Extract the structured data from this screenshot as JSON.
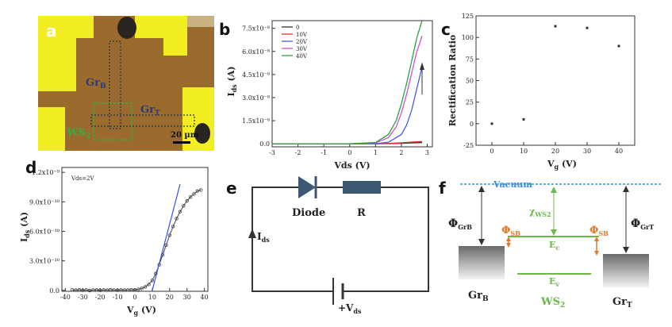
{
  "panels": {
    "a": {
      "letter": "a",
      "label_top": "Gr",
      "label_top_sub": "B",
      "label_mid": "Gr",
      "label_mid_sub": "T",
      "label_ws2": "WS",
      "label_ws2_sub": "2",
      "scalebar": "20 µm",
      "colors": {
        "background": "#9a6b2c",
        "electrode": "#f2ee22",
        "ws2_outline": "#2fae4a",
        "flake_outline": "#223355"
      }
    },
    "b": {
      "letter": "b",
      "arrow_direction": "up"
    },
    "c": {
      "letter": "c"
    },
    "d": {
      "letter": "d"
    },
    "e": {
      "letter": "e",
      "diode_label": "Diode",
      "resistor_label": "R",
      "current_label": "I",
      "current_sub": "ds",
      "source_label": "+V",
      "source_sub": "ds"
    },
    "f": {
      "letter": "f",
      "vacuum": "Vacuum",
      "phi_left": "Φ",
      "phi_left_sub": "GrB",
      "phi_right": "Φ",
      "phi_right_sub": "GrT",
      "phi_sb": "Φ",
      "phi_sb_sub": "SB",
      "chi": "χ",
      "chi_sub": "WS2",
      "ec": "E",
      "ec_sub": "c",
      "ev": "E",
      "ev_sub": "v",
      "gr_left": "Gr",
      "gr_left_sub": "B",
      "gr_right": "Gr",
      "gr_right_sub": "T",
      "ws2": "WS",
      "ws2_sub": "2",
      "colors": {
        "vacuum": "#3a8fd8",
        "band": "#6cb84a",
        "phi_sb": "#e07a2a",
        "phi": "#333333"
      }
    }
  },
  "chart_data": [
    {
      "id": "b",
      "type": "line",
      "ylabel": "I",
      "ylabel_sub": "ds",
      "ylabel_unit": "(A)",
      "xlabel": "Vds (V)",
      "xlim": [
        -3,
        3.2
      ],
      "ylim": [
        -2e-09,
        8e-08
      ],
      "x_ticks": [
        -3,
        -2,
        -1,
        0,
        1,
        2,
        3
      ],
      "x_tick_labels": [
        "-3",
        "-2",
        "-1",
        "0",
        "1",
        "2",
        "3"
      ],
      "y_ticks": [
        0,
        1.5e-08,
        3e-08,
        4.5e-08,
        6e-08,
        7.5e-08
      ],
      "y_tick_labels": [
        "0.0",
        "1.5x10⁻⁸",
        "3.0x10⁻⁸",
        "4.5x10⁻⁸",
        "6.0x10⁻⁸",
        "7.5x10⁻⁸"
      ],
      "legend_position": "top-left",
      "series": [
        {
          "name": "0",
          "color": "#333333",
          "x": [
            -3,
            -2,
            -1,
            0,
            1,
            1.5,
            2,
            2.5,
            2.8
          ],
          "y": [
            0,
            0,
            0,
            0,
            0,
            1e-10,
            3e-10,
            6e-10,
            8e-10
          ]
        },
        {
          "name": "10V",
          "color": "#e03030",
          "x": [
            -3,
            -2,
            -1,
            0,
            1,
            1.5,
            2,
            2.5,
            2.8
          ],
          "y": [
            0,
            0,
            0,
            0,
            0,
            2e-10,
            6e-10,
            1.2e-09,
            1.5e-09
          ]
        },
        {
          "name": "20V",
          "color": "#4d5be0",
          "x": [
            -3,
            -2,
            -1,
            0,
            1,
            1.5,
            2,
            2.2,
            2.4,
            2.6,
            2.8
          ],
          "y": [
            0,
            0,
            0,
            0,
            0,
            1e-09,
            6e-09,
            1.2e-08,
            2.2e-08,
            3.6e-08,
            5e-08
          ]
        },
        {
          "name": "30V",
          "color": "#d050d0",
          "x": [
            -3,
            -2,
            -1,
            0,
            1,
            1.5,
            1.8,
            2.0,
            2.2,
            2.4,
            2.6,
            2.8
          ],
          "y": [
            0,
            0,
            0,
            0,
            5e-10,
            4e-09,
            1.1e-08,
            2e-08,
            3.2e-08,
            4.6e-08,
            6e-08,
            7e-08
          ]
        },
        {
          "name": "40V",
          "color": "#30a040",
          "x": [
            -3,
            -2,
            -1,
            0,
            1,
            1.5,
            1.8,
            2.0,
            2.2,
            2.4,
            2.6,
            2.8
          ],
          "y": [
            0,
            0,
            0,
            0,
            8e-10,
            6e-09,
            1.5e-08,
            2.6e-08,
            3.9e-08,
            5.4e-08,
            6.9e-08,
            8e-08
          ]
        }
      ]
    },
    {
      "id": "c",
      "type": "scatter",
      "ylabel": "Rectification Ratio",
      "xlabel": "V",
      "xlabel_sub": "g",
      "xlabel_unit": "(V)",
      "xlim": [
        -5,
        45
      ],
      "ylim": [
        -25,
        125
      ],
      "x_ticks": [
        0,
        10,
        20,
        30,
        40
      ],
      "y_ticks": [
        -25,
        0,
        25,
        50,
        75,
        100,
        125
      ],
      "series": [
        {
          "x": [
            0,
            10,
            20,
            30,
            40
          ],
          "y": [
            0,
            5,
            113,
            111,
            90
          ]
        }
      ]
    },
    {
      "id": "d",
      "type": "line",
      "ylabel": "I",
      "ylabel_sub": "ds",
      "ylabel_unit": "(A)",
      "xlabel": "V",
      "xlabel_sub": "g",
      "xlabel_unit": "(V)",
      "annotation": "Vds=2V",
      "xlim": [
        -42,
        42
      ],
      "ylim": [
        -1e-11,
        1.25e-09
      ],
      "x_ticks": [
        -40,
        -30,
        -20,
        -10,
        0,
        10,
        20,
        30,
        40
      ],
      "x_tick_labels": [
        "-40",
        "-30",
        "-20",
        "-10",
        "0",
        "10",
        "20",
        "30",
        "40"
      ],
      "y_ticks": [
        0,
        3e-10,
        6e-10,
        9e-10,
        1.2e-09
      ],
      "y_tick_labels": [
        "0.0",
        "3.0x10⁻¹⁰",
        "6.0x10⁻¹⁰",
        "9.0x10⁻¹⁰",
        "1.2x10⁻⁹"
      ],
      "series": [
        {
          "name": "data",
          "color": "#444444",
          "x": [
            -36,
            -34,
            -32,
            -30,
            -28,
            -26,
            -24,
            -22,
            -20,
            -18,
            -16,
            -14,
            -12,
            -10,
            -8,
            -6,
            -4,
            -2,
            0,
            2,
            4,
            6,
            8,
            10,
            12,
            14,
            16,
            18,
            20,
            22,
            24,
            26,
            28,
            30,
            32,
            34,
            36,
            38
          ],
          "y": [
            5e-12,
            2e-12,
            6e-12,
            1e-12,
            4e-12,
            -2e-12,
            3e-12,
            5e-12,
            0.0,
            4e-12,
            2e-12,
            6e-12,
            3e-12,
            1e-12,
            5e-12,
            2e-12,
            4e-12,
            6e-12,
            5e-12,
            1e-11,
            2e-11,
            3.5e-11,
            6e-11,
            1e-10,
            1.7e-10,
            2.6e-10,
            3.6e-10,
            4.6e-10,
            5.6e-10,
            6.5e-10,
            7.3e-10,
            8e-10,
            8.6e-10,
            9.1e-10,
            9.5e-10,
            9.8e-10,
            1.01e-09,
            1.02e-09
          ]
        },
        {
          "name": "fit",
          "color": "#3a4ee0",
          "x": [
            10,
            26
          ],
          "y": [
            0,
            1.08e-09
          ]
        }
      ]
    }
  ]
}
